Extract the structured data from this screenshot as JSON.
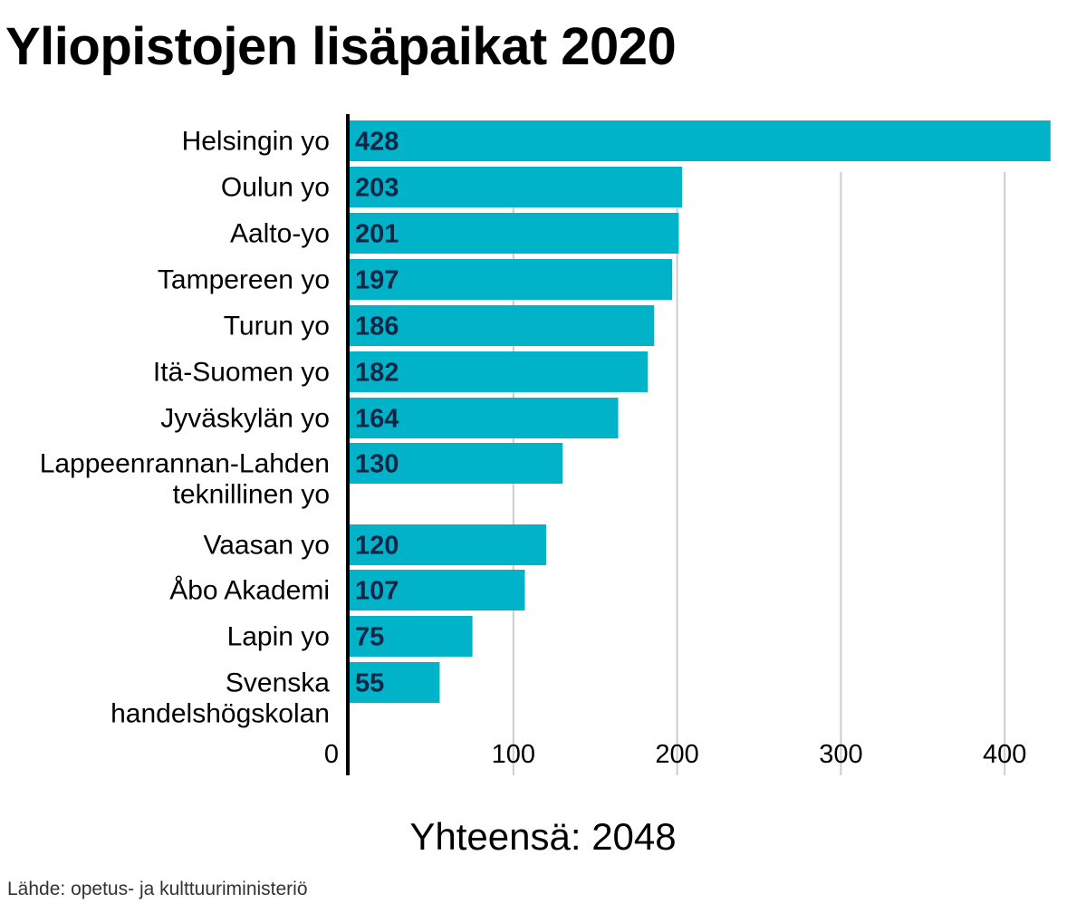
{
  "title": "Yliopistojen lisäpaikat 2020",
  "total_label": "Yhteensä: 2048",
  "source": "Lähde: opetus- ja kulttuuriministeriö",
  "colors": {
    "bar": "#00b3c8",
    "value_text": "#0b2748",
    "grid": "#cccccc",
    "axis": "#000000"
  },
  "chart_data": {
    "type": "bar",
    "orientation": "horizontal",
    "title": "Yliopistojen lisäpaikat 2020",
    "xlabel": "",
    "ylabel": "",
    "xlim": [
      0,
      428
    ],
    "x_ticks": [
      0,
      100,
      200,
      300,
      400
    ],
    "grid": true,
    "categories": [
      [
        "Helsingin yo"
      ],
      [
        "Oulun yo"
      ],
      [
        "Aalto-yo"
      ],
      [
        "Tampereen yo"
      ],
      [
        "Turun yo"
      ],
      [
        "Itä-Suomen yo"
      ],
      [
        "Jyväskylän yo"
      ],
      [
        "Lappeenrannan-Lahden",
        "teknillinen yo"
      ],
      [
        "Vaasan yo"
      ],
      [
        "Åbo Akademi"
      ],
      [
        "Lapin yo"
      ],
      [
        "Svenska",
        "handelshögskolan"
      ]
    ],
    "values": [
      428,
      203,
      201,
      197,
      186,
      182,
      164,
      130,
      120,
      107,
      75,
      55
    ]
  }
}
